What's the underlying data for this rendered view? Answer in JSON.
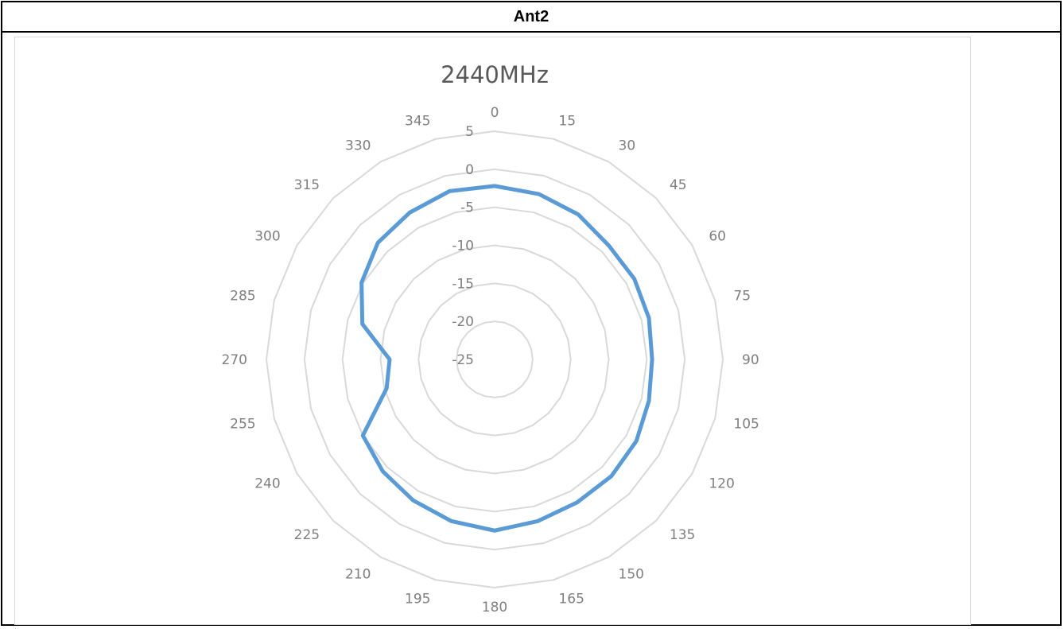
{
  "table": {
    "header": "Ant2"
  },
  "chart_data": {
    "type": "radar",
    "title": "2440MHz",
    "categories": [
      "0",
      "15",
      "30",
      "45",
      "60",
      "75",
      "90",
      "105",
      "120",
      "135",
      "150",
      "165",
      "180",
      "195",
      "210",
      "225",
      "240",
      "255",
      "270",
      "285",
      "300",
      "315",
      "330",
      "345"
    ],
    "radial_ticks": [
      5,
      0,
      -5,
      -10,
      -15,
      -20,
      -25
    ],
    "rlim": [
      -25,
      5
    ],
    "series": [
      {
        "color": "#5b9bd5",
        "values": [
          -2.2,
          -2.5,
          -3.0,
          -3.8,
          -3.8,
          -4.0,
          -4.3,
          -4.0,
          -3.5,
          -3.3,
          -3.3,
          -3.0,
          -2.5,
          -3.0,
          -3.6,
          -4.2,
          -5.0,
          -10.3,
          -11.2,
          -7.0,
          -4.8,
          -3.3,
          -2.7,
          -2.1
        ]
      }
    ],
    "grid": true,
    "legend": "none"
  }
}
